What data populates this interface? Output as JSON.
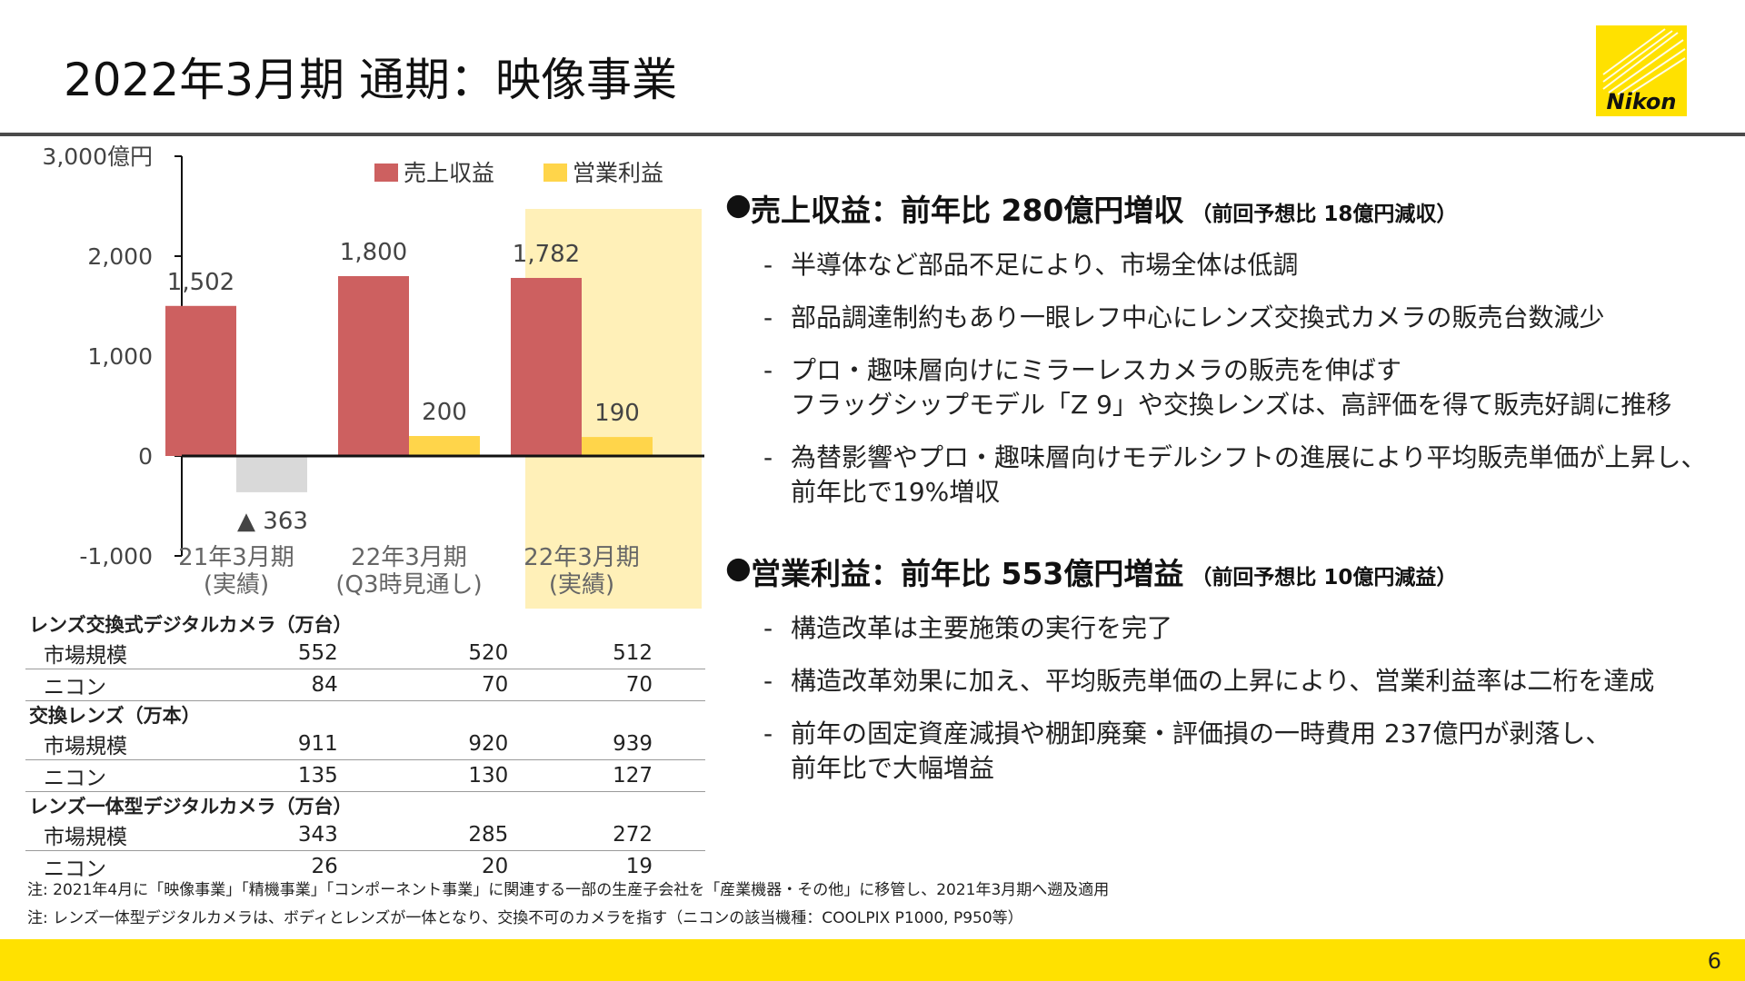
{
  "page": {
    "title": "2022年3月期 通期：映像事業",
    "page_number": "6",
    "logo_text": "Nikon",
    "colors": {
      "revenue": "#cd6060",
      "profit": "#ffd54a",
      "negative": "#d9d9d9",
      "highlight": "#fff0b8",
      "footer": "#ffe100",
      "rule": "#4a4a4a"
    }
  },
  "chart_data": {
    "type": "bar",
    "categories": [
      "21年3月期\n(実績)",
      "22年3月期\n(Q3時見通し)",
      "22年3月期\n(実績)"
    ],
    "series": [
      {
        "name": "売上収益",
        "values": [
          1502,
          1800,
          1782
        ],
        "color": "#cd6060"
      },
      {
        "name": "営業利益",
        "values": [
          -363,
          200,
          190
        ],
        "color": "#ffd54a"
      }
    ],
    "data_labels": {
      "売上収益": [
        "1,502",
        "1,800",
        "1,782"
      ],
      "営業利益": [
        "▲ 363",
        "200",
        "190"
      ]
    },
    "y_ticks": [
      "3,000億円",
      "2,000",
      "1,000",
      "0",
      "-1,000"
    ],
    "ylim": [
      -1000,
      3000
    ],
    "negative_bar_color": "#d9d9d9",
    "highlight_category_index": 2,
    "legend_position": "top",
    "grid": false
  },
  "table": {
    "groups": [
      {
        "title": "レンズ交換式デジタルカメラ（万台）",
        "rows": [
          {
            "label": "市場規模",
            "values": [
              "552",
              "520",
              "512"
            ]
          },
          {
            "label": "ニコン",
            "values": [
              "84",
              "70",
              "70"
            ]
          }
        ]
      },
      {
        "title": "交換レンズ（万本）",
        "rows": [
          {
            "label": "市場規模",
            "values": [
              "911",
              "920",
              "939"
            ]
          },
          {
            "label": "ニコン",
            "values": [
              "135",
              "130",
              "127"
            ]
          }
        ]
      },
      {
        "title": "レンズ一体型デジタルカメラ（万台）",
        "rows": [
          {
            "label": "市場規模",
            "values": [
              "343",
              "285",
              "272"
            ]
          },
          {
            "label": "ニコン",
            "values": [
              "26",
              "20",
              "19"
            ]
          }
        ]
      }
    ]
  },
  "bullets": [
    {
      "head": "売上収益：前年比 280億円増収",
      "note": "（前回予想比 18億円減収）",
      "items": [
        [
          "半導体など部品不足により、市場全体は低調"
        ],
        [
          "部品調達制約もあり一眼レフ中心にレンズ交換式カメラの販売台数減少"
        ],
        [
          "プロ・趣味層向けにミラーレスカメラの販売を伸ばす",
          "フラッグシップモデル「Z 9」や交換レンズは、高評価を得て販売好調に推移"
        ],
        [
          "為替影響やプロ・趣味層向けモデルシフトの進展により平均販売単価が上昇し、",
          "前年比で19%増収"
        ]
      ]
    },
    {
      "head": "営業利益：前年比 553億円増益",
      "note": "（前回予想比 10億円減益）",
      "items": [
        [
          "構造改革は主要施策の実行を完了"
        ],
        [
          "構造改革効果に加え、平均販売単価の上昇により、営業利益率は二桁を達成"
        ],
        [
          "前年の固定資産減損や棚卸廃棄・評価損の一時費用 237億円が剥落し、",
          "前年比で大幅増益"
        ]
      ]
    }
  ],
  "footnotes": [
    "注: 2021年4月に「映像事業」「精機事業」「コンポーネント事業」に関連する一部の生産子会社を「産業機器・その他」に移管し、2021年3月期へ遡及適用",
    "注: レンズ一体型デジタルカメラは、ボディとレンズが一体となり、交換不可のカメラを指す（ニコンの該当機種：COOLPIX P1000, P950等）"
  ]
}
